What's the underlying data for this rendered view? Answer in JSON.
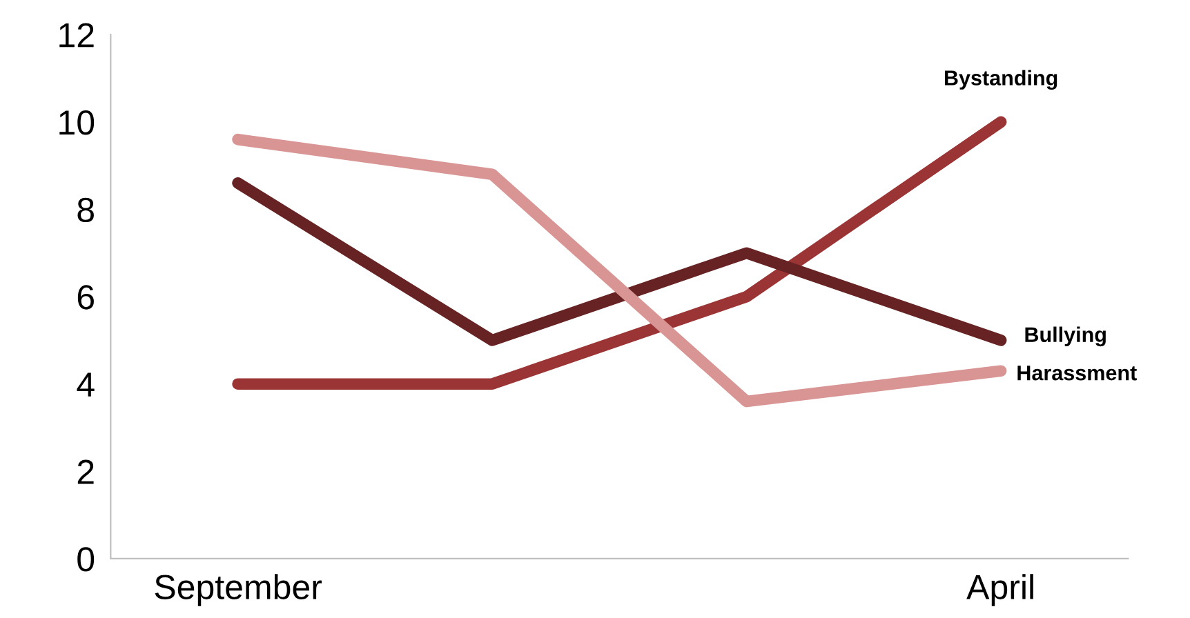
{
  "chart_data": {
    "type": "line",
    "categories": [
      "September",
      null,
      null,
      "April"
    ],
    "series": [
      {
        "name": "Bystanding",
        "color": "#9b3535",
        "values": [
          4,
          4,
          6,
          10
        ]
      },
      {
        "name": "Bullying",
        "color": "#672323",
        "values": [
          8.6,
          5,
          7,
          5
        ]
      },
      {
        "name": "Harassment",
        "color": "#d99594",
        "values": [
          9.6,
          8.8,
          3.6,
          4.3
        ]
      }
    ],
    "ylim": [
      0,
      12
    ],
    "yticks": [
      0,
      2,
      4,
      6,
      8,
      10,
      12
    ],
    "grid": false,
    "legend": false,
    "marker": "none",
    "line_style": "solid"
  }
}
